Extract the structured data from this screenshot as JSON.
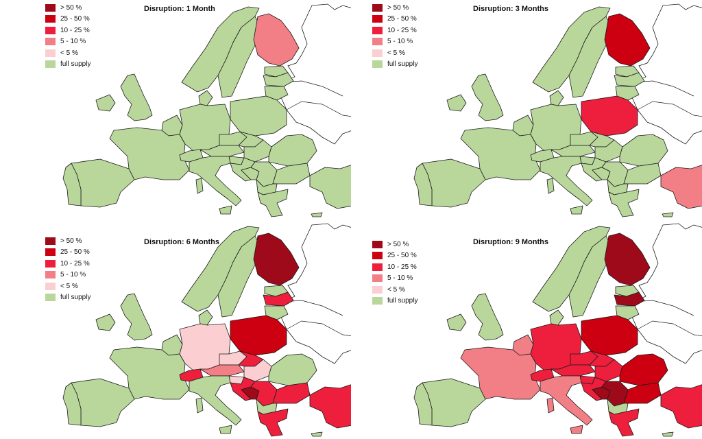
{
  "palette": {
    "gt50": "#9e0a1a",
    "p25_50": "#cc0010",
    "p10_25": "#ee1f3c",
    "p5_10": "#f37f86",
    "lt5": "#fbcfd1",
    "full": "#b9d69b"
  },
  "legend": [
    {
      "key": "gt50",
      "label": "> 50 %"
    },
    {
      "key": "p25_50",
      "label": "25 - 50 %"
    },
    {
      "key": "p10_25",
      "label": "10 - 25 %"
    },
    {
      "key": "p5_10",
      "label": "5 - 10 %"
    },
    {
      "key": "lt5",
      "label": "< 5 %"
    },
    {
      "key": "full",
      "label": "full supply"
    }
  ],
  "panels": [
    {
      "title": "Disruption: 1 Month",
      "regions": {
        "finland": "p5_10"
      }
    },
    {
      "title": "Disruption: 3 Months",
      "regions": {
        "finland": "p25_50",
        "poland": "p10_25",
        "turkey": "p5_10"
      }
    },
    {
      "title": "Disruption: 6 Months",
      "regions": {
        "finland": "gt50",
        "latvia": "p10_25",
        "germany": "lt5",
        "poland": "p25_50",
        "czechia": "lt5",
        "austria": "p5_10",
        "switzerland": "p10_25",
        "hungary": "lt5",
        "slovenia": "lt5",
        "croatia": "p10_25",
        "bosnia": "gt50",
        "serbia": "p10_25",
        "greece": "p10_25",
        "turkey": "p10_25",
        "bulgaria": "p10_25",
        "slovakia": "p10_25"
      }
    },
    {
      "title": "Disruption: 9 Months",
      "regions": {
        "finland": "gt50",
        "latvia": "gt50",
        "germany": "p10_25",
        "poland": "p25_50",
        "czechia": "p10_25",
        "austria": "p10_25",
        "switzerland": "p10_25",
        "france": "p5_10",
        "italy": "p5_10",
        "benelux": "p5_10",
        "hungary": "p10_25",
        "slovenia": "p10_25",
        "croatia": "p10_25",
        "slovakia": "p10_25",
        "bosnia": "gt50",
        "serbia": "gt50",
        "romania": "p25_50",
        "bulgaria": "p25_50",
        "greece": "p10_25",
        "turkey": "p10_25",
        "sardinia": "p5_10"
      }
    }
  ]
}
